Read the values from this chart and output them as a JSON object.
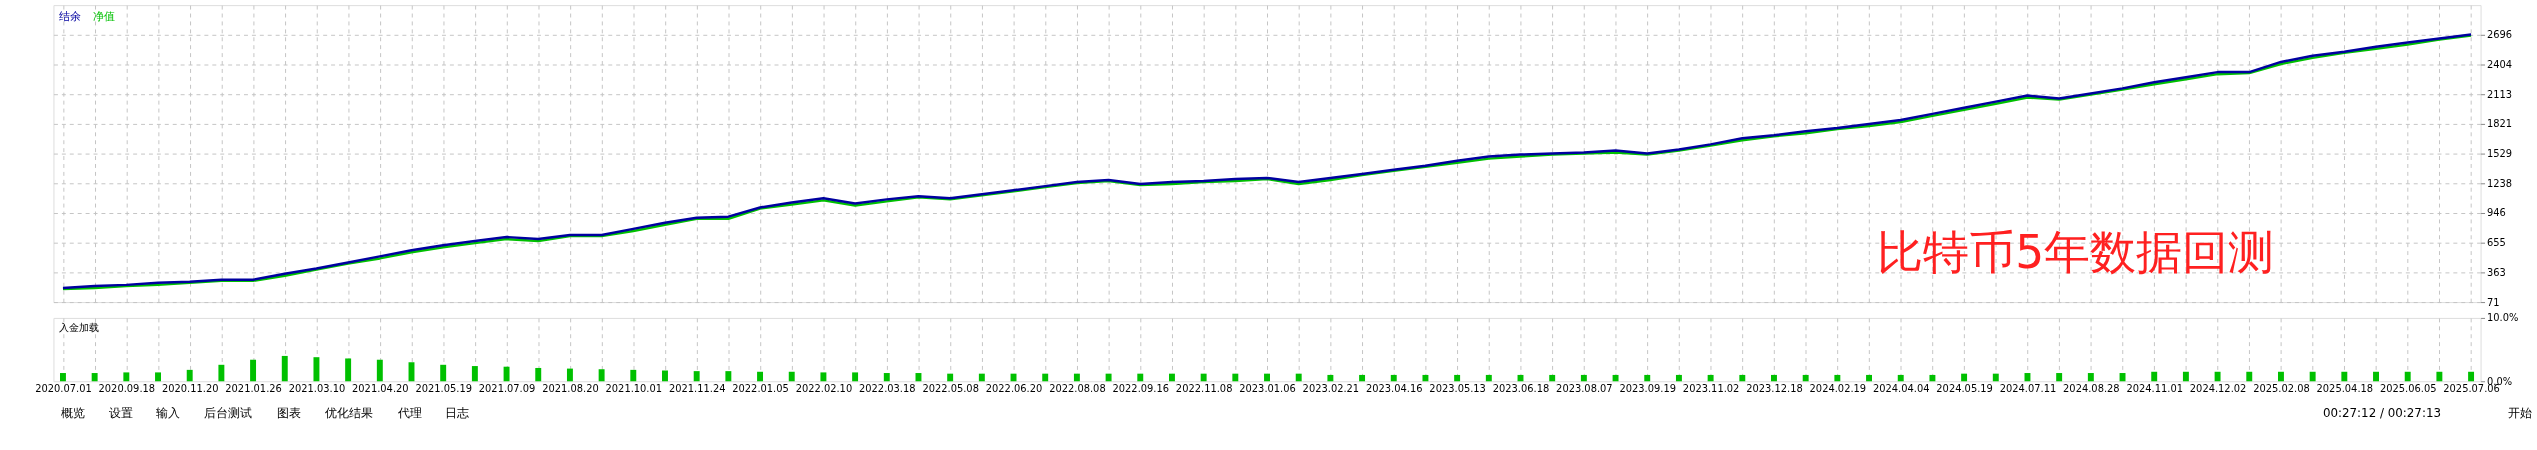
{
  "chart_data": [
    {
      "type": "line",
      "tick_labels": "y",
      "grid": true,
      "annotations": [
        "比特币5年数据回测"
      ],
      "categories": [
        "2020.07.01",
        null,
        "2020.09.18",
        null,
        "2020.11.20",
        null,
        "2021.01.26",
        null,
        "2021.03.10",
        null,
        "2021.04.20",
        null,
        "2021.05.19",
        null,
        "2021.07.09",
        null,
        "2021.08.20",
        null,
        "2021.10.01",
        null,
        "2021.11.24",
        null,
        "2022.01.05",
        null,
        "2022.02.10",
        null,
        "2022.03.18",
        null,
        "2022.05.08",
        null,
        "2022.06.20",
        null,
        "2022.08.08",
        null,
        "2022.09.16",
        null,
        "2022.11.08",
        null,
        "2023.01.06",
        null,
        "2023.02.21",
        null,
        "2023.04.16",
        null,
        "2023.05.13",
        null,
        "2023.06.18",
        null,
        "2023.08.07",
        null,
        "2023.09.19",
        null,
        "2023.11.02",
        null,
        "2023.12.18",
        null,
        "2024.02.19",
        null,
        "2024.04.04",
        null,
        "2024.05.19",
        null,
        "2024.07.11",
        null,
        "2024.08.28",
        null,
        "2024.11.01",
        null,
        "2024.12.02",
        null,
        "2025.02.08",
        null,
        "2025.04.18",
        null,
        "2025.06.05",
        null,
        "2025.07.06"
      ],
      "ylim": [
        71,
        2988
      ],
      "yticks": [
        71,
        363,
        655,
        946,
        1238,
        1529,
        1821,
        2113,
        2404,
        2696
      ],
      "series": [
        {
          "name": "净值",
          "color": "#00c000",
          "values": [
            200,
            210,
            230,
            240,
            260,
            280,
            280,
            330,
            390,
            450,
            500,
            560,
            610,
            650,
            690,
            670,
            720,
            720,
            770,
            830,
            890,
            890,
            990,
            1030,
            1070,
            1020,
            1060,
            1100,
            1080,
            1120,
            1160,
            1200,
            1240,
            1260,
            1220,
            1230,
            1250,
            1260,
            1280,
            1230,
            1270,
            1320,
            1360,
            1400,
            1440,
            1480,
            1500,
            1520,
            1530,
            1540,
            1520,
            1560,
            1610,
            1660,
            1700,
            1730,
            1770,
            1800,
            1840,
            1900,
            1960,
            2020,
            2080,
            2060,
            2110,
            2160,
            2210,
            2260,
            2310,
            2320,
            2410,
            2470,
            2520,
            2560,
            2600,
            2650,
            2690
          ]
        },
        {
          "name": "结余",
          "color": "#0000a0",
          "values": [
            210,
            230,
            240,
            260,
            270,
            290,
            290,
            350,
            400,
            460,
            520,
            580,
            630,
            670,
            710,
            690,
            730,
            730,
            790,
            850,
            900,
            910,
            1000,
            1050,
            1090,
            1040,
            1080,
            1110,
            1090,
            1130,
            1170,
            1210,
            1250,
            1270,
            1230,
            1250,
            1260,
            1280,
            1290,
            1250,
            1290,
            1330,
            1370,
            1410,
            1460,
            1500,
            1520,
            1530,
            1540,
            1560,
            1530,
            1570,
            1620,
            1680,
            1710,
            1750,
            1780,
            1820,
            1860,
            1920,
            1980,
            2040,
            2100,
            2070,
            2120,
            2170,
            2230,
            2280,
            2330,
            2330,
            2430,
            2490,
            2530,
            2580,
            2620,
            2660,
            2700
          ]
        }
      ]
    },
    {
      "type": "bar",
      "title": "入金加载",
      "grid": "x",
      "color": "#00c000",
      "annotations": [
        "概览",
        "设置",
        "输入",
        "后台测试",
        "图表",
        "优化结果",
        "代理",
        "日志",
        "00:27:12 / 00:27:13",
        "开始"
      ],
      "categories": [
        "2020.07.01",
        null,
        "2020.09.18",
        null,
        "2020.11.20",
        null,
        "2021.01.26",
        null,
        "2021.03.10",
        null,
        "2021.04.20",
        null,
        "2021.05.19",
        null,
        "2021.07.09",
        null,
        "2021.08.20",
        null,
        "2021.10.01",
        null,
        "2021.11.24",
        null,
        "2022.01.05",
        null,
        "2022.02.10",
        null,
        "2022.03.18",
        null,
        "2022.05.08",
        null,
        "2022.06.20",
        null,
        "2022.08.08",
        null,
        "2022.09.16",
        null,
        "2022.11.08",
        null,
        "2023.01.06",
        null,
        "2023.02.21",
        null,
        "2023.04.16",
        null,
        "2023.05.13",
        null,
        "2023.06.18",
        null,
        "2023.08.07",
        null,
        "2023.09.19",
        null,
        "2023.11.02",
        null,
        "2023.12.18",
        null,
        "2024.02.19",
        null,
        "2024.04.04",
        null,
        "2024.05.19",
        null,
        "2024.07.11",
        null,
        "2024.08.28",
        null,
        "2024.11.01",
        null,
        "2024.12.02",
        null,
        "2025.02.08",
        null,
        "2025.04.18",
        null,
        "2025.06.05",
        null,
        "2025.07.06"
      ],
      "ylim": [
        0,
        10
      ],
      "yticks": [
        {
          "value": 0,
          "label": "0.0%"
        },
        {
          "value": 10,
          "label": "10.0%"
        }
      ],
      "values": [
        1.3,
        1.3,
        1.4,
        1.4,
        1.8,
        2.6,
        3.4,
        4.0,
        3.8,
        3.6,
        3.4,
        3.0,
        2.6,
        2.4,
        2.3,
        2.1,
        2.0,
        1.9,
        1.8,
        1.7,
        1.6,
        1.6,
        1.5,
        1.5,
        1.4,
        1.4,
        1.3,
        1.3,
        1.2,
        1.2,
        1.2,
        1.2,
        1.2,
        1.2,
        1.2,
        1.2,
        1.2,
        1.2,
        1.2,
        1.2,
        1.0,
        1.0,
        1.0,
        1.0,
        1.0,
        1.0,
        1.0,
        1.0,
        1.0,
        1.0,
        1.0,
        1.0,
        1.0,
        1.0,
        1.0,
        1.0,
        1.0,
        1.0,
        1.0,
        1.0,
        1.2,
        1.2,
        1.3,
        1.3,
        1.3,
        1.3,
        1.5,
        1.5,
        1.5,
        1.5,
        1.5,
        1.5,
        1.5,
        1.5,
        1.5,
        1.5,
        1.5
      ]
    }
  ]
}
